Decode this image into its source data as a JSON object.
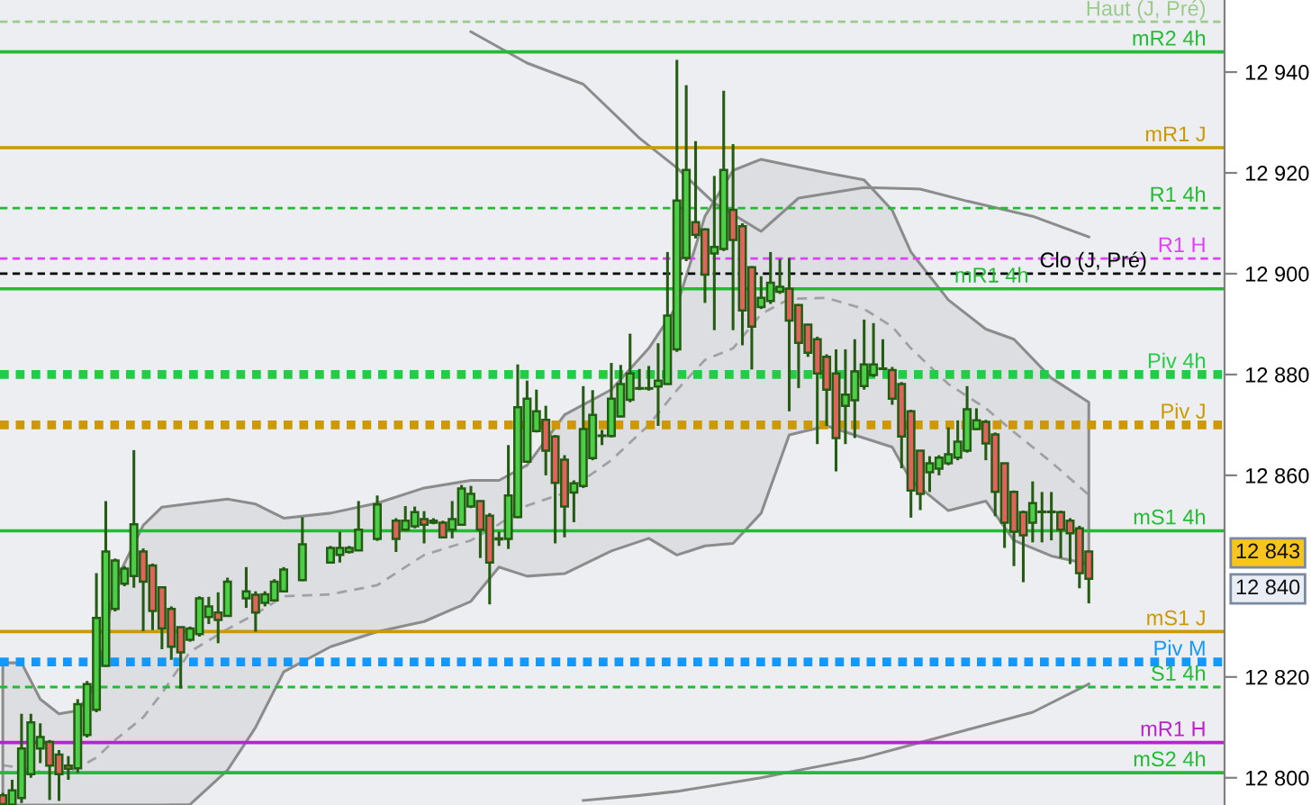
{
  "chart_data": {
    "type": "candlestick",
    "categories": [
      null,
      null,
      null,
      null,
      null,
      null,
      null,
      null,
      null,
      null,
      null,
      null,
      null,
      null,
      null,
      null,
      null,
      null,
      null,
      null,
      null,
      null,
      null,
      null,
      null,
      null,
      null,
      null,
      null,
      null,
      null,
      null,
      null,
      null,
      null,
      null,
      null,
      null,
      null,
      null,
      null,
      null,
      null,
      null,
      null,
      null,
      null,
      null,
      null,
      null,
      null,
      null,
      null,
      null,
      null,
      null,
      null,
      null,
      null,
      null,
      null,
      null,
      null,
      null,
      null,
      null,
      null,
      null,
      null,
      null,
      null,
      null,
      null,
      null,
      null,
      null,
      null,
      null,
      null,
      null,
      null,
      null,
      null,
      null,
      null,
      null,
      null,
      null,
      null,
      null,
      null,
      null,
      null,
      null,
      null,
      null,
      null,
      null,
      null,
      null,
      null,
      null,
      null,
      null,
      null,
      null,
      null,
      null,
      null,
      null,
      null,
      null,
      null,
      null,
      null,
      null,
      null
    ],
    "ohlc": [
      [
        12796.5,
        12797,
        12794.7,
        12794.8
      ],
      [
        12794.7,
        12799.6,
        12794.7,
        12797.5
      ],
      [
        12796,
        12812.7,
        12795,
        12805.8
      ],
      [
        12800.7,
        12812.7,
        12800,
        12811
      ],
      [
        12805.8,
        12810.8,
        12802.9,
        12808.1
      ],
      [
        12807.1,
        12807.5,
        12795.6,
        12802.4
      ],
      [
        12804.6,
        12805.5,
        12795.4,
        12800.7
      ],
      [
        12802.4,
        12804.3,
        12799.6,
        12801.8
      ],
      [
        12801.9,
        12815.6,
        12801,
        12814.6
      ],
      [
        12808.5,
        12819.2,
        12808,
        12818.6
      ],
      [
        12813.5,
        12840.6,
        12813,
        12831.7
      ],
      [
        12822.2,
        12854.9,
        12822,
        12844.9
      ],
      [
        12833.5,
        12843.5,
        12833,
        12843.1
      ],
      [
        12838.5,
        12842,
        12838,
        12841.5
      ],
      [
        12840,
        12865,
        12837.7,
        12850.3
      ],
      [
        12844.9,
        12845.5,
        12829.1,
        12838.9
      ],
      [
        12842.1,
        12842.5,
        12829.3,
        12833.1
      ],
      [
        12837.8,
        12838,
        12825.5,
        12829.6
      ],
      [
        12833.5,
        12834,
        12823.4,
        12826
      ],
      [
        12829.9,
        12830,
        12817.7,
        12824.9
      ],
      [
        12827.4,
        12830,
        12827,
        12829.6
      ],
      [
        12828.5,
        12836,
        12828,
        12835.6
      ],
      [
        12831.9,
        12835.9,
        12830.5,
        12834
      ],
      [
        12832.8,
        12836.8,
        12826.7,
        12831.3
      ],
      [
        12832.1,
        12839.7,
        12832,
        12838.9
      ],
      null,
      [
        12835.6,
        12841.8,
        12833.7,
        12837
      ],
      [
        12836.3,
        12837,
        12829,
        12832.8
      ],
      [
        12834.7,
        12837,
        12834,
        12836.4
      ],
      [
        12835.2,
        12839.4,
        12835,
        12838.9
      ],
      [
        12837,
        12841.8,
        12837,
        12841.3
      ],
      null,
      [
        12839.2,
        12851.7,
        12839,
        12846.3
      ],
      null,
      null,
      [
        12842.7,
        12846,
        12842.5,
        12845.6
      ],
      [
        12844.2,
        12848.8,
        12842.7,
        12845.6
      ],
      [
        12844.8,
        12846,
        12844.5,
        12845.6
      ],
      [
        12845.1,
        12854.9,
        12845,
        12849.2
      ],
      null,
      [
        12847.4,
        12856,
        12847,
        12854.2
      ],
      null,
      [
        12851,
        12851.5,
        12844.8,
        12847.4
      ],
      [
        12849.2,
        12853.9,
        12849,
        12851
      ],
      [
        12849.9,
        12853.8,
        12849.5,
        12852.7
      ],
      [
        12851.3,
        12852.9,
        12846.5,
        12850.2
      ],
      [
        12850.6,
        12851.5,
        12850.3,
        12851
      ],
      [
        12850.6,
        12851,
        12847.5,
        12847.7
      ],
      [
        12849.2,
        12854.9,
        12847.5,
        12851.3
      ],
      [
        12850.2,
        12858.1,
        12850,
        12857.4
      ],
      [
        12853.8,
        12857.9,
        12853.5,
        12856.3
      ],
      [
        12854.9,
        12855,
        12843.6,
        12849.2
      ],
      [
        12852,
        12852.5,
        12834.4,
        12842.7
      ],
      [
        12847.5,
        12848.8,
        12846,
        12847.3
      ],
      [
        12847.4,
        12866,
        12845.4,
        12856
      ],
      [
        12851.7,
        12882,
        12851.5,
        12873.5
      ],
      [
        12862.7,
        12878.8,
        12862.5,
        12875.2
      ],
      [
        12868.8,
        12877,
        12868.5,
        12872.7
      ],
      [
        12871,
        12873.8,
        12860,
        12864.9
      ],
      [
        12867.7,
        12868,
        12846.5,
        12858.5
      ],
      [
        12863.1,
        12864,
        12847.7,
        12853.8
      ],
      [
        12856.6,
        12859,
        12850.7,
        12858.4
      ],
      [
        12857.9,
        12877.7,
        12857.5,
        12869.2
      ],
      [
        12863.4,
        12876.9,
        12863,
        12872
      ],
      [
        12867.8,
        12869,
        12866,
        12867.9
      ],
      [
        12867.8,
        12882.3,
        12867.5,
        12875.2
      ],
      [
        12871.7,
        12881.9,
        12871.5,
        12878.1
      ],
      [
        12875,
        12888.1,
        12874.5,
        12880.2
      ],
      [
        12877.2,
        12881.1,
        12876.9,
        12877.3
      ],
      [
        12877.3,
        12881.7,
        12876.8,
        12877.2
      ],
      [
        12877.6,
        12886.2,
        12869.8,
        12878.8
      ],
      [
        12878.1,
        12904.3,
        12878,
        12891.7
      ],
      [
        12885,
        12942.4,
        12884.5,
        12914.5
      ],
      [
        12903.1,
        12937.4,
        12902.5,
        12920.6
      ],
      [
        12910.2,
        12926.3,
        12907,
        12907.7
      ],
      [
        12908.8,
        12909,
        12894.2,
        12899.8
      ],
      [
        12904,
        12919.4,
        12888.8,
        12905.3
      ],
      [
        12904.9,
        12936.3,
        12904.5,
        12920.6
      ],
      [
        12912.7,
        12925.7,
        12888.8,
        12906.7
      ],
      [
        12909.4,
        12910,
        12885.8,
        12892.7
      ],
      [
        12901.3,
        12901.5,
        12881,
        12889.5
      ],
      [
        12893.4,
        12899.5,
        12893,
        12895.2
      ],
      [
        12894.6,
        12904.3,
        12894,
        12898.2
      ],
      [
        12896.4,
        12902.9,
        12896,
        12897.4
      ],
      [
        12897,
        12903.1,
        12872.7,
        12890.7
      ],
      [
        12893.8,
        12894,
        12877.3,
        12886.3
      ],
      [
        12889.9,
        12890,
        12883.5,
        12884.3
      ],
      [
        12887,
        12887.5,
        12866.2,
        12880.2
      ],
      [
        12883.5,
        12884,
        12869.8,
        12877
      ],
      [
        12880.2,
        12885,
        12860.8,
        12867.4
      ],
      [
        12873.8,
        12885,
        12866.2,
        12876
      ],
      [
        12874.9,
        12887,
        12867.4,
        12880.6
      ],
      [
        12877.7,
        12890.9,
        12877,
        12882
      ],
      [
        12879.9,
        12890.2,
        12879.5,
        12882
      ],
      [
        12881.2,
        12887,
        12881,
        12881.1
      ],
      [
        12880.9,
        12881.5,
        12874,
        12875.2
      ],
      [
        12878.1,
        12878.5,
        12861.4,
        12867.7
      ],
      [
        12872.7,
        12873,
        12851.6,
        12857
      ],
      [
        12864.9,
        12865,
        12853.1,
        12856.3
      ],
      [
        12860.6,
        12863.8,
        12856.7,
        12862.4
      ],
      [
        12861.3,
        12864,
        12860,
        12863.5
      ],
      [
        12862.4,
        12869.5,
        12862,
        12864.2
      ],
      [
        12863.5,
        12870.9,
        12863,
        12866.7
      ],
      [
        12864.9,
        12877.7,
        12864.5,
        12873.1
      ],
      [
        12869.2,
        12873.3,
        12869,
        12870.9
      ],
      [
        12870.6,
        12871,
        12863,
        12866.3
      ],
      [
        12868.1,
        12868.5,
        12851.9,
        12856.7
      ],
      [
        12862.4,
        12862.5,
        12845.6,
        12850.6
      ],
      [
        12856.7,
        12857,
        12842,
        12848.8
      ],
      [
        12852.7,
        12853,
        12838.8,
        12848.1
      ],
      [
        12850.6,
        12858.8,
        12846.7,
        12854.5
      ],
      [
        12852.7,
        12856.7,
        12846.7,
        12852.8
      ],
      [
        12852.8,
        12856.7,
        12847.1,
        12852.7
      ],
      [
        12852.7,
        12853,
        12843.6,
        12849.2
      ],
      [
        12851,
        12851.5,
        12842.4,
        12848.5
      ],
      [
        12849.5,
        12850,
        12837.6,
        12840.6
      ],
      [
        12844.9,
        12845,
        12834.6,
        12839.5
      ]
    ],
    "series": [
      {
        "type": "line",
        "color": "#8c8c8c",
        "values": [
          null,
          null,
          null,
          null,
          null,
          null,
          null,
          null,
          null,
          null,
          null,
          null,
          null,
          null,
          null,
          null,
          null,
          null,
          null,
          null,
          null,
          null,
          null,
          null,
          null,
          null,
          null,
          null,
          null,
          null,
          null,
          null,
          null,
          null,
          null,
          null,
          null,
          null,
          null,
          null,
          null,
          null,
          null,
          null,
          null,
          null,
          null,
          null,
          null,
          null,
          12948,
          null,
          null,
          null,
          null,
          null,
          12941.8,
          null,
          null,
          null,
          null,
          null,
          12937.6,
          null,
          null,
          null,
          null,
          null,
          12926.9,
          null,
          null,
          null,
          12921,
          null,
          null,
          null,
          12914,
          null,
          null,
          null,
          null,
          12908.4,
          null,
          null,
          null,
          12915,
          null,
          null,
          null,
          null,
          null,
          null,
          12917.1,
          null,
          null,
          null,
          null,
          null,
          12916.8,
          null,
          null,
          null,
          null,
          12914.4,
          null,
          null,
          null,
          null,
          null,
          null,
          12911.4,
          null,
          null,
          null,
          null,
          null,
          12907.3
        ]
      },
      {
        "type": "line",
        "color": "#8c8c8c",
        "values": [
          null,
          null,
          null,
          null,
          null,
          null,
          null,
          null,
          null,
          null,
          null,
          null,
          null,
          null,
          null,
          null,
          null,
          null,
          null,
          null,
          null,
          null,
          null,
          null,
          null,
          null,
          null,
          null,
          null,
          null,
          null,
          null,
          null,
          null,
          null,
          null,
          null,
          null,
          null,
          null,
          null,
          null,
          null,
          null,
          null,
          null,
          null,
          null,
          null,
          null,
          null,
          null,
          null,
          null,
          null,
          null,
          null,
          null,
          null,
          null,
          null,
          null,
          12795.5,
          null,
          null,
          null,
          null,
          null,
          12796.5,
          null,
          null,
          null,
          12797.3,
          null,
          null,
          null,
          12798.5,
          null,
          null,
          null,
          null,
          12800,
          null,
          null,
          null,
          12801.5,
          null,
          null,
          null,
          null,
          null,
          null,
          12804,
          null,
          null,
          null,
          null,
          null,
          12807,
          null,
          null,
          null,
          null,
          12809.5,
          null,
          null,
          null,
          null,
          null,
          null,
          12813,
          null,
          null,
          null,
          null,
          null,
          12818.6
        ]
      },
      {
        "type": "line",
        "color": "#8c8c8c",
        "line_style": "dashed",
        "values": [
          12802.5,
          null,
          12802,
          null,
          12801.2,
          null,
          12800.8,
          null,
          12801.9,
          null,
          12804,
          null,
          12807.5,
          null,
          null,
          12812,
          null,
          12816.8,
          null,
          null,
          12825,
          null,
          null,
          null,
          12829.5,
          null,
          null,
          12832.5,
          null,
          null,
          12836,
          null,
          null,
          null,
          null,
          12836.4,
          null,
          null,
          null,
          null,
          12838.2,
          null,
          null,
          null,
          null,
          12844.2,
          null,
          null,
          null,
          null,
          12847.1,
          null,
          null,
          12850.3,
          null,
          null,
          12854,
          null,
          null,
          null,
          12856.5,
          null,
          null,
          null,
          null,
          12863,
          null,
          null,
          null,
          12870,
          null,
          null,
          12876.9,
          null,
          null,
          12882.9,
          null,
          null,
          12885.2,
          null,
          null,
          12892,
          null,
          null,
          12895,
          null,
          null,
          null,
          12895.2,
          null,
          null,
          null,
          12893,
          null,
          null,
          12889.5,
          null,
          12885.2,
          null,
          null,
          null,
          12878.1,
          null,
          null,
          null,
          12873.3,
          null,
          null,
          12868.6,
          null,
          null,
          null,
          12862.6,
          null,
          null,
          null,
          12856.1
        ],
        "upper": [
          12822.8,
          null,
          12822.8,
          null,
          12815.6,
          null,
          12812.7,
          null,
          12813.3,
          null,
          12818.6,
          null,
          12838.8,
          null,
          null,
          12850.1,
          null,
          12853.7,
          null,
          null,
          12854.4,
          null,
          null,
          null,
          12855.3,
          null,
          null,
          12854.3,
          null,
          null,
          12851.5,
          null,
          null,
          null,
          null,
          12852.5,
          null,
          null,
          null,
          null,
          12854.5,
          null,
          null,
          null,
          null,
          12857.5,
          null,
          null,
          null,
          null,
          12859,
          null,
          null,
          12859,
          null,
          null,
          12862,
          null,
          null,
          null,
          12872,
          null,
          null,
          null,
          null,
          12877,
          null,
          null,
          null,
          12885.2,
          null,
          null,
          12893.6,
          null,
          null,
          12911.4,
          null,
          null,
          12920.5,
          null,
          null,
          12922.7,
          null,
          null,
          12921.5,
          null,
          null,
          null,
          12920,
          null,
          null,
          null,
          12918.6,
          null,
          null,
          12912.6,
          null,
          12904.3,
          null,
          null,
          null,
          12894.8,
          null,
          null,
          null,
          12889,
          null,
          null,
          12887,
          null,
          null,
          null,
          12879.3,
          null,
          null,
          null,
          12874.5
        ],
        "lower": [
          12794.6,
          null,
          12794.6,
          null,
          12794.6,
          null,
          12794.6,
          null,
          12794.6,
          null,
          12794.6,
          null,
          12794.6,
          null,
          null,
          12794.6,
          null,
          12794.6,
          null,
          null,
          12794.7,
          null,
          null,
          null,
          12801.5,
          null,
          null,
          12810,
          null,
          null,
          12821,
          null,
          null,
          null,
          null,
          12826,
          null,
          null,
          null,
          null,
          12829,
          null,
          null,
          null,
          null,
          12831,
          null,
          null,
          null,
          null,
          12835,
          null,
          null,
          12841.8,
          null,
          null,
          12840,
          null,
          null,
          null,
          12840.5,
          null,
          null,
          null,
          null,
          12845,
          null,
          null,
          null,
          12847.5,
          null,
          null,
          12844.2,
          null,
          null,
          12846,
          null,
          null,
          12846.5,
          null,
          null,
          12852.5,
          null,
          null,
          12868,
          null,
          null,
          null,
          12869.8,
          null,
          null,
          null,
          12867.4,
          null,
          null,
          12865.6,
          null,
          12859,
          null,
          null,
          null,
          12853,
          null,
          null,
          null,
          12854.9,
          null,
          null,
          12847.1,
          null,
          null,
          null,
          12844,
          null,
          null,
          null,
          12842.4
        ]
      }
    ],
    "ylim": [
      12794.6,
      12954.3
    ],
    "yticks": [
      {
        "value": 12800,
        "label": "12 800"
      },
      {
        "value": 12820,
        "label": "12 820"
      },
      {
        "value": 12860,
        "label": "12 860"
      },
      {
        "value": 12880,
        "label": "12 880"
      },
      {
        "value": 12900,
        "label": "12 900"
      },
      {
        "value": 12920,
        "label": "12 920"
      },
      {
        "value": 12940,
        "label": "12 940"
      }
    ],
    "ref_lines": [
      {
        "axis": "y",
        "value": 12950,
        "label": "Haut (J, Pré)",
        "color": "#9acb8a",
        "line_style": "dotted"
      },
      {
        "axis": "y",
        "value": 12944,
        "label": "mR2 4h",
        "color": "#22bb33",
        "line_style": "solid"
      },
      {
        "axis": "y",
        "value": 12925,
        "label": "mR1 J",
        "color": "#cc9900",
        "line_style": "solid"
      },
      {
        "axis": "y",
        "value": 12913,
        "label": "R1 4h",
        "color": "#22bb33",
        "line_style": "dotted"
      },
      {
        "axis": "y",
        "value": 12903,
        "label": "R1 H",
        "color": "#e040fb",
        "line_style": "dotted"
      },
      {
        "axis": "y",
        "value": 12900,
        "label": "Clo (J, Pré)",
        "color": "#000000",
        "line_style": "dotted"
      },
      {
        "axis": "y",
        "value": 12897,
        "label": "mR1 4h",
        "color": "#22bb33",
        "line_style": "solid"
      },
      {
        "axis": "y",
        "value": 12880,
        "label": "Piv 4h",
        "color": "#22cc44",
        "line_style": "dashed"
      },
      {
        "axis": "y",
        "value": 12870,
        "label": "Piv J",
        "color": "#cc9900",
        "line_style": "dashed"
      },
      {
        "axis": "y",
        "value": 12849,
        "label": "mS1 4h",
        "color": "#22bb33",
        "line_style": "solid"
      },
      {
        "axis": "y",
        "value": 12829,
        "label": "mS1 J",
        "color": "#cc9900",
        "line_style": "solid"
      },
      {
        "axis": "y",
        "value": 12823,
        "label": "Piv M",
        "color": "#1199ff",
        "line_style": "dashed"
      },
      {
        "axis": "y",
        "value": 12818,
        "label": "S1 4h",
        "color": "#22bb33",
        "line_style": "dotted"
      },
      {
        "axis": "y",
        "value": 12807,
        "label": "mR1 H",
        "color": "#bb22cc",
        "line_style": "solid"
      },
      {
        "axis": "y",
        "value": 12801,
        "label": "mS2 4h",
        "color": "#22bb33",
        "line_style": "solid"
      }
    ],
    "annotations": [
      "12 843",
      "12 840"
    ]
  }
}
